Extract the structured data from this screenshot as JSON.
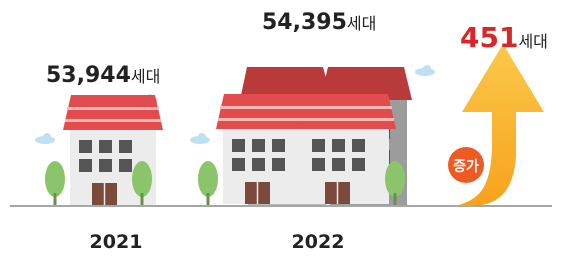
{
  "items": [
    {
      "year": "2021",
      "count": "53,944",
      "unit": "세대"
    },
    {
      "year": "2022",
      "count": "54,395",
      "unit": "세대"
    }
  ],
  "increase": {
    "count": "451",
    "unit": "세대",
    "badge": "증가"
  }
}
